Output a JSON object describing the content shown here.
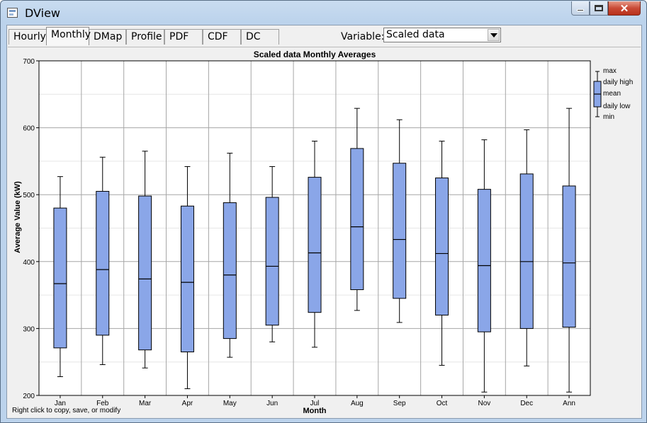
{
  "window": {
    "title": "DView"
  },
  "tabs": [
    {
      "label": "Hourly",
      "active": false
    },
    {
      "label": "Monthly",
      "active": true
    },
    {
      "label": "DMap",
      "active": false
    },
    {
      "label": "Profile",
      "active": false
    },
    {
      "label": "PDF",
      "active": false
    },
    {
      "label": "CDF",
      "active": false
    },
    {
      "label": "DC",
      "active": false
    }
  ],
  "variable": {
    "label": "Variable:",
    "selected": "Scaled data"
  },
  "footer_hint": "Right click to copy, save, or modify",
  "colors": {
    "box_fill": "#8aa6e8",
    "grid": "#a6a6a6",
    "axis": "#000000"
  },
  "chart_data": {
    "type": "boxplot",
    "title": "Scaled data Monthly Averages",
    "xlabel": "Month",
    "ylabel": "Average Value (kW)",
    "ylim": [
      200,
      700
    ],
    "yticks": [
      200,
      300,
      400,
      500,
      600,
      700
    ],
    "grid": true,
    "legend_position": "right",
    "legend": [
      "max",
      "daily high",
      "mean",
      "daily low",
      "min"
    ],
    "categories": [
      "Jan",
      "Feb",
      "Mar",
      "Apr",
      "May",
      "Jun",
      "Jul",
      "Aug",
      "Sep",
      "Oct",
      "Nov",
      "Dec",
      "Ann"
    ],
    "min": [
      228,
      246,
      241,
      210,
      257,
      280,
      272,
      327,
      309,
      245,
      205,
      244,
      205
    ],
    "daily_low": [
      271,
      290,
      268,
      265,
      285,
      305,
      324,
      358,
      345,
      320,
      295,
      300,
      302
    ],
    "mean": [
      367,
      388,
      374,
      369,
      380,
      393,
      413,
      452,
      433,
      412,
      394,
      400,
      398
    ],
    "daily_high": [
      480,
      505,
      498,
      483,
      488,
      496,
      526,
      569,
      547,
      525,
      508,
      531,
      513
    ],
    "max": [
      527,
      556,
      565,
      542,
      562,
      542,
      580,
      629,
      612,
      580,
      582,
      597,
      629
    ]
  }
}
